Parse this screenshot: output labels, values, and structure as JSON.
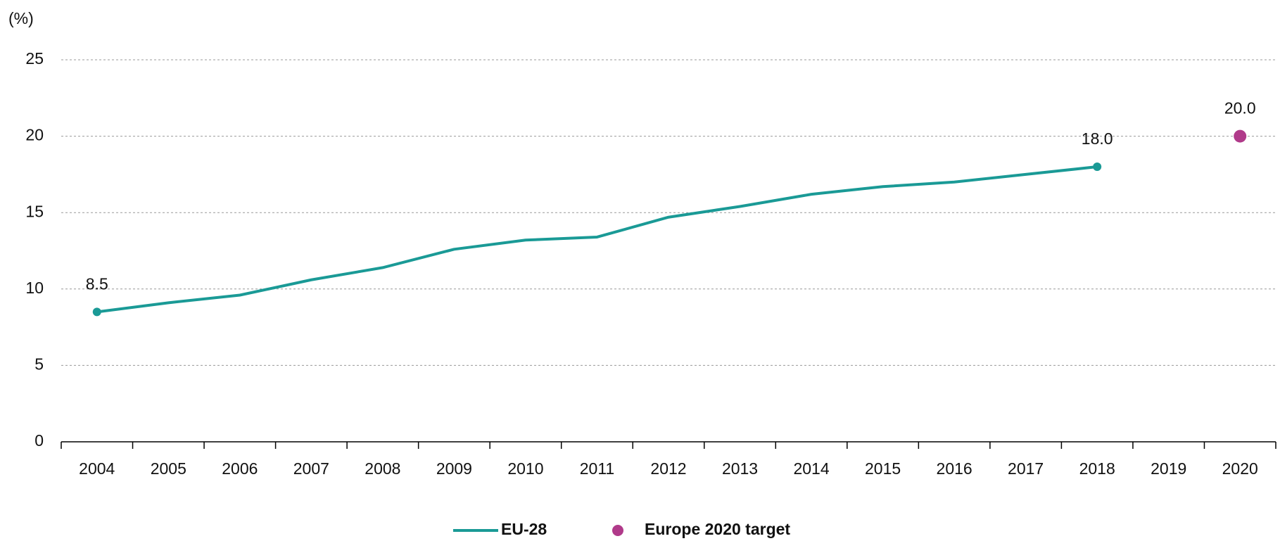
{
  "chart_data": {
    "type": "line",
    "unit_label": "(%)",
    "categories": [
      "2004",
      "2005",
      "2006",
      "2007",
      "2008",
      "2009",
      "2010",
      "2011",
      "2012",
      "2013",
      "2014",
      "2015",
      "2016",
      "2017",
      "2018",
      "2019",
      "2020"
    ],
    "series": [
      {
        "name": "EU-28",
        "color": "#1a9a96",
        "style": "line",
        "values": [
          8.5,
          9.1,
          9.6,
          10.6,
          11.4,
          12.6,
          13.2,
          13.4,
          14.7,
          15.4,
          16.2,
          16.7,
          17.0,
          17.5,
          18.0,
          null,
          null
        ],
        "value_labels": [
          "8.5",
          null,
          null,
          null,
          null,
          null,
          null,
          null,
          null,
          null,
          null,
          null,
          null,
          null,
          "18.0",
          null,
          null
        ]
      },
      {
        "name": "Europe 2020 target",
        "color": "#b03a8a",
        "style": "marker",
        "values": [
          null,
          null,
          null,
          null,
          null,
          null,
          null,
          null,
          null,
          null,
          null,
          null,
          null,
          null,
          null,
          null,
          20.0
        ],
        "value_labels": [
          null,
          null,
          null,
          null,
          null,
          null,
          null,
          null,
          null,
          null,
          null,
          null,
          null,
          null,
          null,
          null,
          "20.0"
        ]
      }
    ],
    "ylim": [
      0,
      25
    ],
    "yticks": [
      0,
      5,
      10,
      15,
      20,
      25
    ],
    "grid": true
  }
}
